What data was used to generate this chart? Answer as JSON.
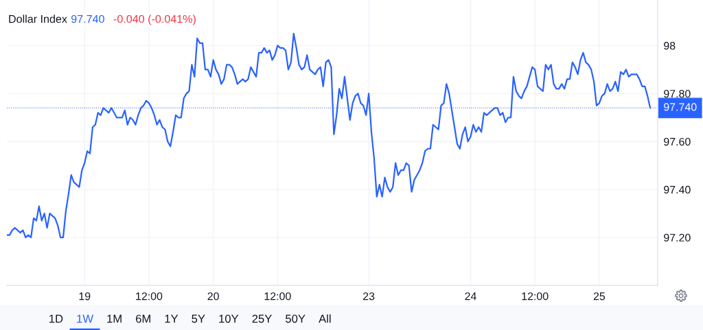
{
  "chart_data": {
    "type": "line",
    "title": "Dollar Index",
    "annotations": [
      "97.740",
      "-0.040 (-0.041%)",
      "1D",
      "1W",
      "1M",
      "6M",
      "1Y",
      "5Y",
      "10Y",
      "25Y",
      "50Y",
      "All"
    ],
    "categories": [
      null,
      null,
      null,
      null,
      null,
      null,
      null,
      null,
      null,
      null,
      null,
      null,
      null,
      null,
      null,
      null,
      null,
      null,
      null,
      null,
      null,
      null,
      null,
      null,
      null,
      null,
      null,
      null,
      null,
      "19",
      null,
      null,
      null,
      null,
      null,
      null,
      null,
      null,
      null,
      null,
      null,
      null,
      null,
      null,
      null,
      null,
      null,
      null,
      null,
      null,
      null,
      null,
      null,
      "12:00",
      null,
      null,
      null,
      null,
      null,
      null,
      null,
      null,
      null,
      null,
      null,
      null,
      null,
      null,
      null,
      null,
      null,
      null,
      null,
      null,
      null,
      null,
      null,
      "20",
      null,
      null,
      null,
      null,
      null,
      null,
      null,
      null,
      null,
      null,
      null,
      null,
      null,
      null,
      null,
      null,
      null,
      null,
      null,
      null,
      null,
      null,
      null,
      "12:00",
      null,
      null,
      null,
      null,
      null,
      null,
      null,
      null,
      null,
      null,
      null,
      null,
      null,
      null,
      null,
      null,
      null,
      null,
      null,
      null,
      null,
      null,
      null,
      null,
      null,
      null,
      null,
      null,
      null,
      null,
      null,
      null,
      null,
      "23",
      null,
      null,
      null,
      null,
      null,
      null,
      null,
      null,
      null,
      null,
      null,
      null,
      null,
      null,
      null,
      null,
      null,
      null,
      null,
      null,
      null,
      null,
      null,
      null,
      null,
      null,
      null,
      null,
      null,
      null,
      null,
      null,
      null,
      null,
      null,
      null,
      null,
      "24",
      null,
      null,
      null,
      null,
      null,
      null,
      null,
      null,
      null,
      null,
      null,
      null,
      null,
      null,
      null,
      null,
      null,
      null,
      null,
      null,
      null,
      null,
      null,
      "12:00",
      null,
      null,
      null,
      null,
      null,
      null,
      null,
      null,
      null,
      null,
      null,
      null,
      null,
      null,
      null,
      null,
      null,
      null,
      null,
      null,
      null,
      null,
      null,
      "25",
      null,
      null,
      null,
      null,
      null,
      null,
      null,
      null,
      null,
      null,
      null,
      null,
      null,
      null,
      null,
      null,
      null,
      null,
      null
    ],
    "series": [
      {
        "color": "#2962ff",
        "values": [
          97.21,
          97.21,
          97.23,
          97.24,
          97.23,
          97.22,
          97.23,
          97.2,
          97.21,
          97.2,
          97.28,
          97.27,
          97.33,
          97.27,
          97.3,
          97.24,
          97.3,
          97.29,
          97.28,
          97.25,
          97.2,
          97.2,
          97.31,
          97.38,
          97.46,
          97.43,
          97.42,
          97.41,
          97.48,
          97.51,
          97.56,
          97.55,
          97.66,
          97.67,
          97.72,
          97.71,
          97.74,
          97.73,
          97.72,
          97.74,
          97.72,
          97.7,
          97.7,
          97.7,
          97.73,
          97.67,
          97.7,
          97.69,
          97.67,
          97.71,
          97.74,
          97.75,
          97.77,
          97.76,
          97.74,
          97.71,
          97.67,
          97.69,
          97.66,
          97.65,
          97.6,
          97.58,
          97.64,
          97.71,
          97.7,
          97.7,
          97.78,
          97.8,
          97.81,
          97.92,
          97.87,
          98.03,
          98.01,
          98.01,
          97.9,
          97.9,
          97.87,
          97.94,
          97.9,
          97.88,
          97.84,
          97.86,
          97.92,
          97.92,
          97.91,
          97.88,
          97.84,
          97.85,
          97.86,
          97.85,
          97.86,
          97.91,
          97.89,
          97.87,
          97.97,
          97.97,
          97.99,
          97.97,
          97.98,
          97.94,
          97.96,
          98.0,
          97.99,
          97.99,
          97.98,
          97.9,
          97.93,
          98.05,
          97.99,
          97.92,
          97.9,
          97.91,
          97.96,
          97.9,
          97.89,
          97.88,
          97.9,
          97.91,
          97.83,
          97.93,
          97.94,
          97.91,
          97.63,
          97.71,
          97.82,
          97.78,
          97.87,
          97.78,
          97.69,
          97.76,
          97.79,
          97.8,
          97.76,
          97.75,
          97.71,
          97.8,
          97.64,
          97.53,
          97.37,
          97.42,
          97.37,
          97.45,
          97.41,
          97.39,
          97.41,
          97.51,
          97.46,
          97.48,
          97.48,
          97.51,
          97.5,
          97.39,
          97.44,
          97.46,
          97.48,
          97.51,
          97.56,
          97.57,
          97.57,
          97.67,
          97.66,
          97.65,
          97.75,
          97.76,
          97.84,
          97.8,
          97.73,
          97.66,
          97.59,
          97.57,
          97.63,
          97.66,
          97.6,
          97.62,
          97.67,
          97.64,
          97.66,
          97.64,
          97.72,
          97.71,
          97.72,
          97.73,
          97.74,
          97.74,
          97.71,
          97.72,
          97.68,
          97.7,
          97.7,
          97.87,
          97.81,
          97.79,
          97.78,
          97.81,
          97.83,
          97.87,
          97.91,
          97.9,
          97.83,
          97.82,
          97.81,
          97.92,
          97.9,
          97.92,
          97.84,
          97.82,
          97.82,
          97.84,
          97.82,
          97.86,
          97.86,
          97.93,
          97.91,
          97.88,
          97.94,
          97.97,
          97.93,
          97.92,
          97.9,
          97.85,
          97.75,
          97.76,
          97.79,
          97.8,
          97.84,
          97.81,
          97.82,
          97.85,
          97.81,
          97.89,
          97.88,
          97.9,
          97.87,
          97.88,
          97.88,
          97.88,
          97.86,
          97.83,
          97.83,
          97.79,
          97.74
        ]
      }
    ],
    "ylim": [
      97.0,
      98.19
    ],
    "yticks": [
      {
        "value": 97.2,
        "label": "97.20"
      },
      {
        "value": 97.4,
        "label": "97.40"
      },
      {
        "value": 97.6,
        "label": "97.60"
      },
      {
        "value": 97.8,
        "label": "97.80"
      },
      98
    ],
    "grid": true,
    "ref_lines": [
      {
        "axis": "y",
        "value": 97.74,
        "label": "97.740",
        "color": "#2962ff",
        "line_style": "dotted"
      }
    ]
  }
}
